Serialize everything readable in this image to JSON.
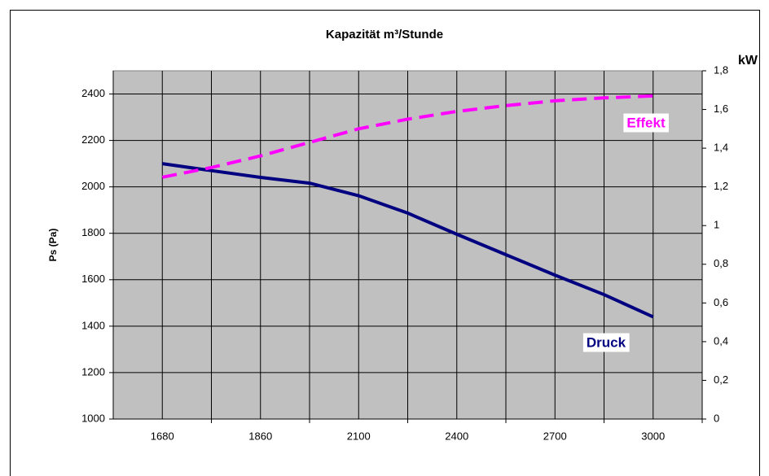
{
  "chart_data": {
    "type": "line",
    "title": "Kapazität m³/Stunde",
    "y_label": "Ps (Pa)",
    "y2_label": "kW",
    "categories": [
      "1680",
      null,
      "1860",
      null,
      "2100",
      null,
      "2400",
      null,
      "2700",
      null,
      "3000"
    ],
    "series": [
      {
        "name": "Druck",
        "color": "#000080",
        "axis": "y",
        "values": [
          2100,
          2070,
          2041,
          2016,
          1962,
          1887,
          1796,
          1708,
          1620,
          1536,
          1440
        ]
      },
      {
        "name": "Effekt",
        "color": "#ff00ff",
        "axis": "y2",
        "dashed": true,
        "values": [
          1.25,
          1.3,
          1.36,
          1.43,
          1.5,
          1.55,
          1.59,
          1.62,
          1.645,
          1.66,
          1.67
        ]
      }
    ],
    "ylim": [
      1000,
      2500
    ],
    "yticks": [
      1000,
      1200,
      1400,
      1600,
      1800,
      2000,
      2200,
      2400
    ],
    "y2lim": [
      0,
      1.8
    ],
    "y2ticks": [
      0,
      {
        "value": 0.2,
        "label": "0,2"
      },
      {
        "value": 0.4,
        "label": "0,4"
      },
      {
        "value": 0.6,
        "label": "0,6"
      },
      {
        "value": 0.8,
        "label": "0,8"
      },
      1,
      {
        "value": 1.2,
        "label": "1,2"
      },
      {
        "value": 1.4,
        "label": "1,4"
      },
      {
        "value": 1.6,
        "label": "1,6"
      },
      {
        "value": 1.8,
        "label": "1,8"
      }
    ],
    "grid": true
  }
}
